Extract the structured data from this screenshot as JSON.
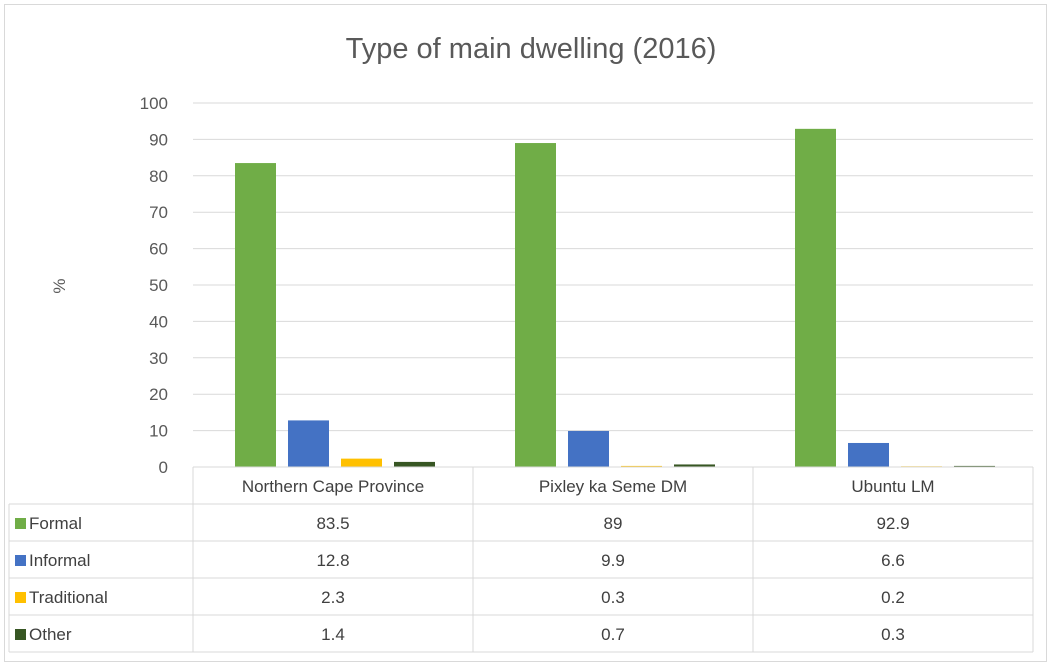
{
  "chart_data": {
    "type": "bar",
    "title": "Type of main dwelling (2016)",
    "xlabel": "",
    "ylabel": "%",
    "ylim": [
      0,
      100
    ],
    "yticks": [
      0,
      10,
      20,
      30,
      40,
      50,
      60,
      70,
      80,
      90,
      100
    ],
    "grid": true,
    "legend": "data-table",
    "categories": [
      "Northern Cape Province",
      "Pixley ka Seme DM",
      "Ubuntu LM"
    ],
    "series": [
      {
        "name": "Formal",
        "color": "#70ad47",
        "values": [
          83.5,
          89,
          92.9
        ]
      },
      {
        "name": "Informal",
        "color": "#4472c4",
        "values": [
          12.8,
          9.9,
          6.6
        ]
      },
      {
        "name": "Traditional",
        "color": "#ffc000",
        "values": [
          2.3,
          0.3,
          0.2
        ]
      },
      {
        "name": "Other",
        "color": "#375623",
        "values": [
          1.4,
          0.7,
          0.3
        ]
      }
    ],
    "table_values": [
      [
        "83.5",
        "89",
        "92.9"
      ],
      [
        "12.8",
        "9.9",
        "6.6"
      ],
      [
        "2.3",
        "0.3",
        "0.2"
      ],
      [
        "1.4",
        "0.7",
        "0.3"
      ]
    ]
  }
}
